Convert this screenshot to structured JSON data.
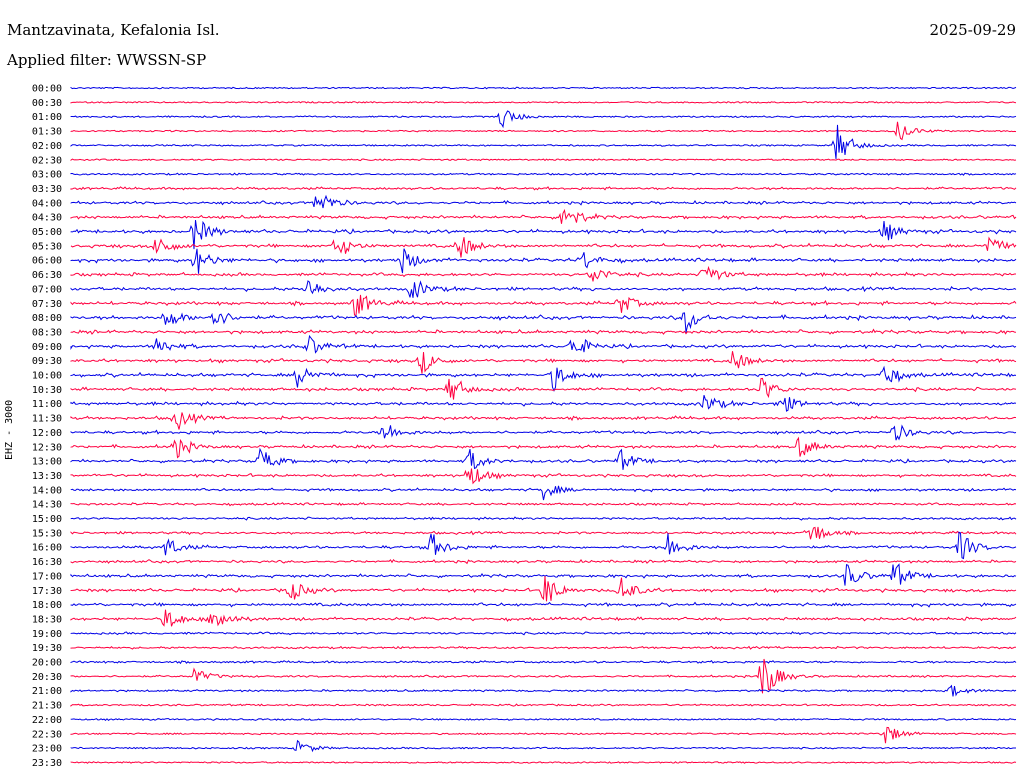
{
  "header": {
    "station": "Mantzavinata, Kefalonia Isl.",
    "date": "2025-09-29",
    "filter": "Applied filter: WWSSN-SP",
    "channel": "EHZ - 3000"
  },
  "colors": {
    "odd_trace": "#0000e6",
    "even_trace": "#ff0040",
    "text": "#000000"
  },
  "chart_data": {
    "type": "line",
    "title": "",
    "ylabel": "EHZ - 3000",
    "xlabel": "",
    "trace_colors": [
      "#0000e6",
      "#ff0040"
    ],
    "row_labels": [
      "00:00",
      "00:30",
      "01:00",
      "01:30",
      "02:00",
      "02:30",
      "03:00",
      "03:30",
      "04:00",
      "04:30",
      "05:00",
      "05:30",
      "06:00",
      "06:30",
      "07:00",
      "07:30",
      "08:00",
      "08:30",
      "09:00",
      "09:30",
      "10:00",
      "10:30",
      "11:00",
      "11:30",
      "12:00",
      "12:30",
      "13:00",
      "13:30",
      "14:00",
      "14:30",
      "15:00",
      "15:30",
      "16:00",
      "16:30",
      "17:00",
      "17:30",
      "18:00",
      "18:30",
      "19:00",
      "19:30",
      "20:00",
      "20:30",
      "21:00",
      "21:30",
      "22:00",
      "22:30",
      "23:00",
      "23:30"
    ],
    "activity_level": [
      0.05,
      0.03,
      0.08,
      0.08,
      0.1,
      0.1,
      0.15,
      0.35,
      0.45,
      0.5,
      0.6,
      0.6,
      0.6,
      0.55,
      0.55,
      0.6,
      0.65,
      0.6,
      0.55,
      0.55,
      0.6,
      0.55,
      0.55,
      0.5,
      0.5,
      0.5,
      0.45,
      0.45,
      0.4,
      0.3,
      0.3,
      0.35,
      0.45,
      0.4,
      0.5,
      0.5,
      0.55,
      0.5,
      0.3,
      0.25,
      0.25,
      0.2,
      0.2,
      0.15,
      0.12,
      0.1,
      0.08,
      0.06
    ],
    "events": [
      {
        "row": 2,
        "at": 0.455,
        "amp": 0.9
      },
      {
        "row": 3,
        "at": 0.875,
        "amp": 0.8
      },
      {
        "row": 4,
        "at": 0.81,
        "amp": 1.6
      },
      {
        "row": 8,
        "at": 0.26,
        "amp": 1.2
      },
      {
        "row": 9,
        "at": 0.52,
        "amp": 1.4
      },
      {
        "row": 10,
        "at": 0.13,
        "amp": 1.3
      },
      {
        "row": 10,
        "at": 0.86,
        "amp": 0.8
      },
      {
        "row": 11,
        "at": 0.09,
        "amp": 1.0
      },
      {
        "row": 11,
        "at": 0.28,
        "amp": 1.0
      },
      {
        "row": 11,
        "at": 0.41,
        "amp": 1.1
      },
      {
        "row": 11,
        "at": 0.97,
        "amp": 0.8
      },
      {
        "row": 12,
        "at": 0.13,
        "amp": 1.3
      },
      {
        "row": 12,
        "at": 0.35,
        "amp": 1.0
      },
      {
        "row": 12,
        "at": 0.54,
        "amp": 0.8
      },
      {
        "row": 13,
        "at": 0.55,
        "amp": 0.8
      },
      {
        "row": 13,
        "at": 0.67,
        "amp": 1.0
      },
      {
        "row": 14,
        "at": 0.25,
        "amp": 0.9
      },
      {
        "row": 14,
        "at": 0.36,
        "amp": 1.0
      },
      {
        "row": 15,
        "at": 0.3,
        "amp": 1.2
      },
      {
        "row": 15,
        "at": 0.58,
        "amp": 0.9
      },
      {
        "row": 16,
        "at": 0.1,
        "amp": 0.9
      },
      {
        "row": 16,
        "at": 0.15,
        "amp": 0.9
      },
      {
        "row": 16,
        "at": 0.65,
        "amp": 1.2
      },
      {
        "row": 18,
        "at": 0.09,
        "amp": 0.8
      },
      {
        "row": 18,
        "at": 0.25,
        "amp": 0.9
      },
      {
        "row": 18,
        "at": 0.53,
        "amp": 1.1
      },
      {
        "row": 19,
        "at": 0.37,
        "amp": 1.0
      },
      {
        "row": 19,
        "at": 0.7,
        "amp": 0.9
      },
      {
        "row": 20,
        "at": 0.24,
        "amp": 1.0
      },
      {
        "row": 20,
        "at": 0.51,
        "amp": 1.1
      },
      {
        "row": 20,
        "at": 0.86,
        "amp": 1.0
      },
      {
        "row": 21,
        "at": 0.4,
        "amp": 1.2
      },
      {
        "row": 21,
        "at": 0.73,
        "amp": 1.0
      },
      {
        "row": 22,
        "at": 0.67,
        "amp": 0.8
      },
      {
        "row": 22,
        "at": 0.75,
        "amp": 0.9
      },
      {
        "row": 23,
        "at": 0.11,
        "amp": 1.0
      },
      {
        "row": 24,
        "at": 0.33,
        "amp": 0.9
      },
      {
        "row": 24,
        "at": 0.87,
        "amp": 0.8
      },
      {
        "row": 25,
        "at": 0.11,
        "amp": 0.9
      },
      {
        "row": 25,
        "at": 0.77,
        "amp": 0.9
      },
      {
        "row": 26,
        "at": 0.2,
        "amp": 1.0
      },
      {
        "row": 26,
        "at": 0.42,
        "amp": 1.0
      },
      {
        "row": 26,
        "at": 0.58,
        "amp": 0.9
      },
      {
        "row": 27,
        "at": 0.42,
        "amp": 1.1
      },
      {
        "row": 28,
        "at": 0.5,
        "amp": 0.7
      },
      {
        "row": 31,
        "at": 0.78,
        "amp": 1.2
      },
      {
        "row": 32,
        "at": 0.1,
        "amp": 0.8
      },
      {
        "row": 32,
        "at": 0.38,
        "amp": 1.1
      },
      {
        "row": 32,
        "at": 0.63,
        "amp": 1.2
      },
      {
        "row": 32,
        "at": 0.94,
        "amp": 1.2
      },
      {
        "row": 34,
        "at": 0.82,
        "amp": 1.0
      },
      {
        "row": 34,
        "at": 0.87,
        "amp": 1.2
      },
      {
        "row": 35,
        "at": 0.23,
        "amp": 1.0
      },
      {
        "row": 35,
        "at": 0.5,
        "amp": 1.4
      },
      {
        "row": 35,
        "at": 0.58,
        "amp": 1.2
      },
      {
        "row": 37,
        "at": 0.1,
        "amp": 1.0
      },
      {
        "row": 37,
        "at": 0.15,
        "amp": 1.2
      },
      {
        "row": 41,
        "at": 0.73,
        "amp": 2.2
      },
      {
        "row": 41,
        "at": 0.13,
        "amp": 0.6
      },
      {
        "row": 42,
        "at": 0.93,
        "amp": 0.5
      },
      {
        "row": 45,
        "at": 0.86,
        "amp": 0.9
      },
      {
        "row": 46,
        "at": 0.24,
        "amp": 0.6
      }
    ]
  }
}
